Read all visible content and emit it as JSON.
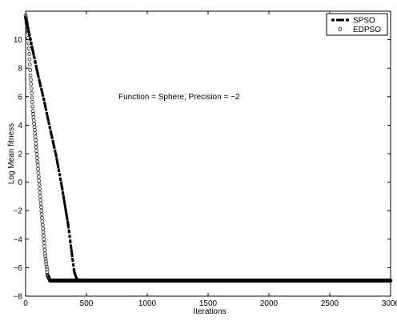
{
  "chart_data": {
    "type": "line",
    "title": "",
    "xlabel": "Iterations",
    "ylabel": "Log Mean fitness",
    "xlim": [
      0,
      3000
    ],
    "ylim": [
      -8,
      12
    ],
    "xticks": [
      0,
      500,
      1000,
      1500,
      2000,
      2500,
      3000
    ],
    "yticks": [
      -8,
      -6,
      -4,
      -2,
      0,
      2,
      4,
      6,
      8,
      10
    ],
    "grid": false,
    "legend_position": "top-right",
    "annotation": "Function = Sphere, Precision = −2",
    "colors": {
      "line": "#000000",
      "background": "#ffffff"
    },
    "series": [
      {
        "name": "SPSO",
        "style": "dashed-filled-markers",
        "x": [
          0,
          20,
          40,
          60,
          80,
          100,
          150,
          200,
          250,
          300,
          350,
          380,
          400,
          420,
          450,
          500,
          1000,
          1500,
          2000,
          2500,
          3000
        ],
        "y": [
          11.5,
          10.8,
          10.0,
          9.2,
          8.4,
          7.6,
          5.8,
          3.8,
          1.9,
          -0.4,
          -3.0,
          -5.0,
          -6.3,
          -6.8,
          -6.9,
          -6.9,
          -6.9,
          -6.9,
          -6.9,
          -6.9,
          -6.9
        ]
      },
      {
        "name": "EDPSO",
        "style": "open-circle-markers",
        "x": [
          0,
          20,
          40,
          60,
          80,
          100,
          120,
          140,
          160,
          180,
          200,
          220,
          250,
          300,
          500,
          1000,
          1500,
          2000,
          2500,
          3000
        ],
        "y": [
          11.7,
          10.5,
          7.5,
          5.0,
          3.2,
          1.2,
          -1.0,
          -3.0,
          -5.0,
          -6.5,
          -6.9,
          -6.9,
          -6.9,
          -6.9,
          -6.9,
          -6.9,
          -6.9,
          -6.9,
          -6.9,
          -6.9
        ]
      }
    ]
  }
}
